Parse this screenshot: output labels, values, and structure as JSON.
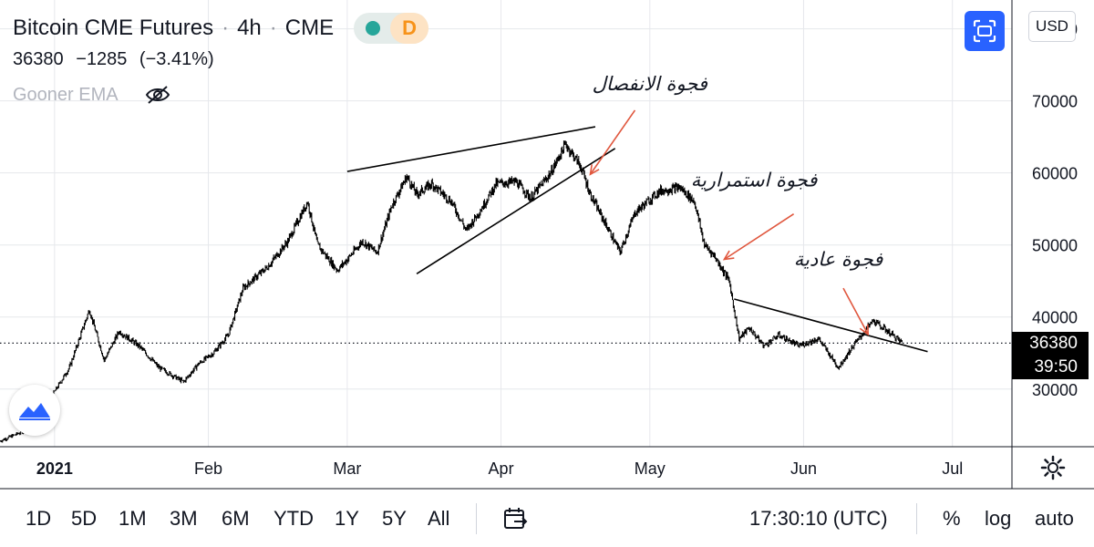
{
  "header": {
    "symbol": "Bitcoin CME Futures",
    "interval": "4h",
    "exchange": "CME",
    "separator": "·",
    "delay_badge": "D",
    "status_color": "#26a69a"
  },
  "price": {
    "last": "36380",
    "change": "−1285",
    "change_pct": "(−3.41%)"
  },
  "indicator": {
    "name": "Gooner EMA",
    "icon": "eye-hidden-icon"
  },
  "toolbar": {
    "currency": "USD",
    "fullscreen_icon": "fullscreen-icon"
  },
  "price_label": {
    "value": "36380",
    "countdown": "39:50"
  },
  "bottom": {
    "ranges": [
      "1D",
      "5D",
      "1M",
      "3M",
      "6M",
      "YTD",
      "1Y",
      "5Y",
      "All"
    ],
    "clock": "17:30:10 (UTC)",
    "percent": "%",
    "log": "log",
    "auto": "auto"
  },
  "chart_data": {
    "type": "candlestick",
    "title": "Bitcoin CME Futures · 4h · CME",
    "x_ticks": [
      {
        "label": "2021",
        "date": "2021-01-01"
      },
      {
        "label": "Feb",
        "date": "2021-02-01"
      },
      {
        "label": "Mar",
        "date": "2021-03-01"
      },
      {
        "label": "Apr",
        "date": "2021-04-01"
      },
      {
        "label": "May",
        "date": "2021-05-01"
      },
      {
        "label": "Jun",
        "date": "2021-06-01"
      },
      {
        "label": "Jul",
        "date": "2021-07-01"
      }
    ],
    "xlim": [
      "2020-12-21",
      "2021-07-13"
    ],
    "y_ticks": [
      30000,
      40000,
      50000,
      60000,
      70000,
      80000
    ],
    "ylim": [
      22000,
      84000
    ],
    "last_price": 36380,
    "grid": true,
    "series": [
      {
        "anchors": [
          [
            "2020-12-21",
            22800
          ],
          [
            "2020-12-27",
            24500
          ],
          [
            "2020-12-31",
            28500
          ],
          [
            "2021-01-04",
            33000
          ],
          [
            "2021-01-08",
            41000
          ],
          [
            "2021-01-11",
            34000
          ],
          [
            "2021-01-14",
            38000
          ],
          [
            "2021-01-18",
            36000
          ],
          [
            "2021-01-22",
            33000
          ],
          [
            "2021-01-27",
            31000
          ],
          [
            "2021-01-30",
            33500
          ],
          [
            "2021-02-02",
            35000
          ],
          [
            "2021-02-05",
            37500
          ],
          [
            "2021-02-08",
            44000
          ],
          [
            "2021-02-13",
            47000
          ],
          [
            "2021-02-17",
            50500
          ],
          [
            "2021-02-21",
            56000
          ],
          [
            "2021-02-23",
            50000
          ],
          [
            "2021-02-27",
            46500
          ],
          [
            "2021-03-01",
            48000
          ],
          [
            "2021-03-04",
            50500
          ],
          [
            "2021-03-07",
            49000
          ],
          [
            "2021-03-10",
            55500
          ],
          [
            "2021-03-13",
            59500
          ],
          [
            "2021-03-15",
            57000
          ],
          [
            "2021-03-18",
            58500
          ],
          [
            "2021-03-22",
            56000
          ],
          [
            "2021-03-25",
            52000
          ],
          [
            "2021-03-28",
            55000
          ],
          [
            "2021-03-31",
            58500
          ],
          [
            "2021-04-04",
            58800
          ],
          [
            "2021-04-07",
            56500
          ],
          [
            "2021-04-11",
            60000
          ],
          [
            "2021-04-14",
            64000
          ],
          [
            "2021-04-17",
            61000
          ],
          [
            "2021-04-19",
            57000
          ],
          [
            "2021-04-22",
            53000
          ],
          [
            "2021-04-25",
            49000
          ],
          [
            "2021-04-28",
            54500
          ],
          [
            "2021-05-03",
            57500
          ],
          [
            "2021-05-07",
            58000
          ],
          [
            "2021-05-10",
            56000
          ],
          [
            "2021-05-12",
            50000
          ],
          [
            "2021-05-14",
            48500
          ],
          [
            "2021-05-17",
            45000
          ],
          [
            "2021-05-19",
            37000
          ],
          [
            "2021-05-21",
            38500
          ],
          [
            "2021-05-24",
            36000
          ],
          [
            "2021-05-27",
            37500
          ],
          [
            "2021-05-31",
            36000
          ],
          [
            "2021-06-04",
            37000
          ],
          [
            "2021-06-08",
            33000
          ],
          [
            "2021-06-11",
            36000
          ],
          [
            "2021-06-15",
            39500
          ],
          [
            "2021-06-18",
            38000
          ],
          [
            "2021-06-21",
            36380
          ]
        ]
      }
    ],
    "trendlines": [
      {
        "name": "wedge-upper",
        "from": [
          "2021-03-01",
          60200
        ],
        "to": [
          "2021-04-20",
          66400
        ]
      },
      {
        "name": "wedge-lower",
        "from": [
          "2021-03-15",
          46000
        ],
        "to": [
          "2021-04-24",
          63400
        ]
      },
      {
        "name": "triangle-upper",
        "from": [
          "2021-05-18",
          42500
        ],
        "to": [
          "2021-06-26",
          35200
        ]
      }
    ],
    "annotations": [
      {
        "text": "فجوة الانفصال",
        "at": [
          "2021-05-01",
          71500
        ],
        "arrow_to": [
          "2021-04-19",
          59800
        ],
        "arrow_from": [
          "2021-04-28",
          68700
        ]
      },
      {
        "text": "فجوة استمرارية",
        "at": [
          "2021-05-22",
          58100
        ],
        "arrow_to": [
          "2021-05-16",
          48000
        ],
        "arrow_from": [
          "2021-05-30",
          54300
        ]
      },
      {
        "text": "فجوة عادية",
        "at": [
          "2021-06-08",
          47100
        ],
        "arrow_to": [
          "2021-06-14",
          37600
        ],
        "arrow_from": [
          "2021-06-09",
          44000
        ]
      }
    ]
  }
}
